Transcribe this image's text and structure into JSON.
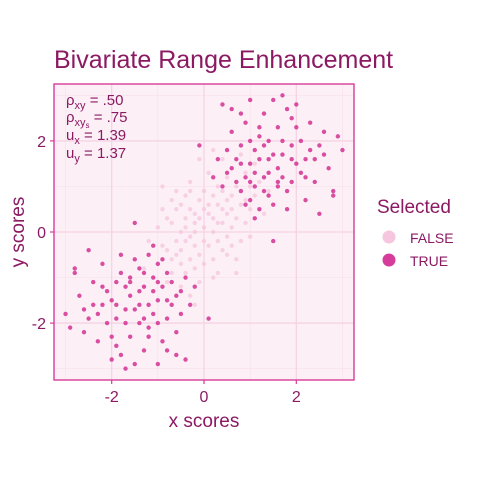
{
  "chart_data": {
    "type": "scatter",
    "title": "Bivariate Range Enhancement",
    "xlabel": "x scores",
    "ylabel": "y scores",
    "xlim": [
      -3.25,
      3.25
    ],
    "ylim": [
      -3.25,
      3.25
    ],
    "x_ticks": [
      -2,
      0,
      2
    ],
    "y_ticks": [
      -2,
      0,
      2
    ],
    "x_tick_labels": [
      "-2",
      "0",
      "2"
    ],
    "y_tick_labels": [
      "-2",
      "0",
      "2"
    ],
    "grid": true,
    "legend": {
      "title": "Selected",
      "position": "right",
      "entries": [
        {
          "label": "FALSE",
          "color": "#f5c6dd"
        },
        {
          "label": "TRUE",
          "color": "#d63c99"
        }
      ]
    },
    "annotations": {
      "rho_xy": {
        "symbol": "ρ",
        "sub": "xy",
        "value": " = .50"
      },
      "rho_xys": {
        "symbol": "ρ",
        "sub": "xy",
        "subsub": "s",
        "value": " = .75"
      },
      "u_x": {
        "symbol": "u",
        "sub": "x",
        "value": " = 1.39"
      },
      "u_y": {
        "symbol": "u",
        "sub": "y",
        "value": " = 1.37"
      }
    },
    "series": [
      {
        "name": "FALSE",
        "color": "#f5c6dd",
        "points": [
          [
            0.0,
            0.1
          ],
          [
            0.2,
            0.3
          ],
          [
            -0.3,
            -0.1
          ],
          [
            0.4,
            0.2
          ],
          [
            -0.5,
            -0.4
          ],
          [
            0.6,
            0.8
          ],
          [
            -0.2,
            0.4
          ],
          [
            0.1,
            -0.3
          ],
          [
            0.3,
            0.6
          ],
          [
            -0.4,
            0.1
          ],
          [
            0.7,
            0.3
          ],
          [
            -0.6,
            -0.2
          ],
          [
            0.5,
            -0.1
          ],
          [
            -0.1,
            0.7
          ],
          [
            0.2,
            -0.6
          ],
          [
            -0.7,
            -0.6
          ],
          [
            0.8,
            0.9
          ],
          [
            -0.3,
            0.5
          ],
          [
            0.4,
            -0.4
          ],
          [
            0.0,
            0.9
          ],
          [
            1.0,
            0.5
          ],
          [
            -0.9,
            -0.3
          ],
          [
            0.3,
            1.0
          ],
          [
            -0.5,
            0.6
          ],
          [
            0.6,
            -0.3
          ],
          [
            -0.2,
            -0.8
          ],
          [
            0.9,
            0.2
          ],
          [
            -0.8,
            0.3
          ],
          [
            0.1,
            0.4
          ],
          [
            -0.1,
            -0.5
          ],
          [
            0.5,
            1.2
          ],
          [
            -0.4,
            -0.9
          ],
          [
            1.1,
            0.8
          ],
          [
            -1.0,
            -0.7
          ],
          [
            0.2,
            0.0
          ],
          [
            -0.3,
            1.1
          ],
          [
            0.7,
            -0.6
          ],
          [
            -0.6,
            0.9
          ],
          [
            0.4,
            0.5
          ],
          [
            -0.2,
            0.0
          ],
          [
            1.2,
            1.1
          ],
          [
            -1.1,
            -1.0
          ],
          [
            0.0,
            -0.2
          ],
          [
            0.8,
            0.6
          ],
          [
            -0.7,
            0.2
          ],
          [
            0.3,
            -0.9
          ],
          [
            -0.4,
            0.8
          ],
          [
            0.6,
            1.4
          ],
          [
            -0.5,
            -1.2
          ],
          [
            1.0,
            -0.1
          ],
          [
            -0.9,
            0.5
          ],
          [
            0.1,
            1.3
          ],
          [
            -0.1,
            -1.1
          ],
          [
            0.9,
            1.3
          ],
          [
            -0.8,
            -1.1
          ],
          [
            0.2,
            0.8
          ],
          [
            -0.2,
            -0.3
          ],
          [
            0.5,
            0.4
          ],
          [
            -0.6,
            -0.5
          ],
          [
            0.4,
            0.9
          ],
          [
            -0.3,
            -0.6
          ],
          [
            0.7,
            1.0
          ],
          [
            -0.4,
            0.3
          ],
          [
            0.0,
            0.5
          ],
          [
            1.3,
            0.4
          ],
          [
            -1.2,
            -0.2
          ],
          [
            0.3,
            -0.2
          ],
          [
            -0.5,
            0.0
          ],
          [
            0.6,
            0.1
          ],
          [
            -0.7,
            -0.9
          ],
          [
            0.8,
            -0.2
          ],
          [
            -0.1,
            1.6
          ],
          [
            0.2,
            -1.0
          ],
          [
            -1.0,
            0.1
          ],
          [
            1.1,
            1.5
          ],
          [
            -0.3,
            -1.4
          ],
          [
            0.5,
            0.7
          ],
          [
            -0.6,
            0.5
          ],
          [
            0.1,
            0.6
          ],
          [
            -0.2,
            0.2
          ],
          [
            0.9,
            0.7
          ],
          [
            -0.8,
            -0.4
          ],
          [
            0.4,
            1.6
          ],
          [
            -0.4,
            -0.2
          ],
          [
            0.7,
            -0.9
          ],
          [
            -0.9,
            1.0
          ],
          [
            0.0,
            -0.7
          ],
          [
            1.4,
            0.9
          ],
          [
            -1.3,
            -0.8
          ],
          [
            0.2,
            1.8
          ],
          [
            -0.5,
            -0.7
          ],
          [
            0.6,
            0.5
          ],
          [
            -0.1,
            0.3
          ],
          [
            0.3,
            0.2
          ],
          [
            -0.7,
            0.7
          ],
          [
            1.0,
            1.0
          ],
          [
            -0.2,
            -1.6
          ],
          [
            0.5,
            -0.5
          ],
          [
            -0.3,
            0.9
          ],
          [
            0.8,
            1.7
          ]
        ]
      },
      {
        "name": "TRUE",
        "color": "#d63c99",
        "points": [
          [
            1.0,
            1.5
          ],
          [
            1.3,
            1.2
          ],
          [
            0.8,
            1.9
          ],
          [
            1.6,
            1.0
          ],
          [
            1.2,
            2.1
          ],
          [
            0.6,
            1.4
          ],
          [
            1.9,
            1.6
          ],
          [
            1.4,
            0.8
          ],
          [
            0.9,
            2.4
          ],
          [
            2.1,
            1.3
          ],
          [
            1.1,
            1.0
          ],
          [
            1.7,
            2.0
          ],
          [
            0.7,
            1.1
          ],
          [
            1.5,
            1.7
          ],
          [
            2.3,
            1.8
          ],
          [
            1.0,
            0.7
          ],
          [
            1.8,
            0.9
          ],
          [
            0.5,
            1.8
          ],
          [
            2.0,
            2.3
          ],
          [
            1.3,
            2.6
          ],
          [
            1.6,
            1.4
          ],
          [
            0.8,
            0.9
          ],
          [
            2.4,
            1.1
          ],
          [
            1.1,
            1.8
          ],
          [
            1.9,
            2.5
          ],
          [
            0.6,
            2.2
          ],
          [
            1.4,
            1.3
          ],
          [
            2.2,
            0.7
          ],
          [
            1.2,
            1.6
          ],
          [
            0.9,
            1.2
          ],
          [
            1.7,
            1.2
          ],
          [
            2.5,
            1.9
          ],
          [
            1.0,
            2.0
          ],
          [
            1.5,
            0.6
          ],
          [
            0.7,
            1.6
          ],
          [
            2.0,
            1.5
          ],
          [
            1.3,
            0.9
          ],
          [
            1.8,
            2.7
          ],
          [
            0.8,
            2.6
          ],
          [
            2.6,
            2.2
          ],
          [
            1.1,
            1.3
          ],
          [
            1.6,
            2.3
          ],
          [
            2.2,
            1.6
          ],
          [
            0.4,
            1.0
          ],
          [
            1.4,
            2.0
          ],
          [
            1.9,
            1.1
          ],
          [
            1.2,
            0.5
          ],
          [
            2.7,
            1.4
          ],
          [
            1.0,
            2.9
          ],
          [
            1.7,
            1.7
          ],
          [
            0.5,
            1.3
          ],
          [
            2.1,
            2.0
          ],
          [
            1.5,
            2.9
          ],
          [
            2.8,
            0.9
          ],
          [
            0.9,
            0.6
          ],
          [
            1.3,
            1.9
          ],
          [
            2.3,
            2.4
          ],
          [
            1.8,
            0.5
          ],
          [
            0.6,
            2.7
          ],
          [
            2.4,
            1.6
          ],
          [
            1.2,
            2.3
          ],
          [
            1.6,
            1.1
          ],
          [
            2.0,
            2.8
          ],
          [
            0.8,
            1.5
          ],
          [
            1.4,
            1.6
          ],
          [
            2.6,
            1.7
          ],
          [
            1.0,
            1.1
          ],
          [
            1.9,
            1.9
          ],
          [
            0.3,
            1.6
          ],
          [
            2.2,
            1.2
          ],
          [
            -1.0,
            -1.5
          ],
          [
            -1.3,
            -1.2
          ],
          [
            -0.8,
            -1.9
          ],
          [
            -1.6,
            -1.0
          ],
          [
            -1.2,
            -2.1
          ],
          [
            -0.6,
            -1.4
          ],
          [
            -1.9,
            -1.6
          ],
          [
            -1.4,
            -0.8
          ],
          [
            -0.9,
            -2.4
          ],
          [
            -2.1,
            -1.3
          ],
          [
            -1.1,
            -1.0
          ],
          [
            -1.7,
            -2.0
          ],
          [
            -0.7,
            -1.1
          ],
          [
            -1.5,
            -1.7
          ],
          [
            -2.3,
            -1.8
          ],
          [
            -1.0,
            -0.7
          ],
          [
            -1.8,
            -0.9
          ],
          [
            -0.5,
            -1.8
          ],
          [
            -2.0,
            -2.3
          ],
          [
            -1.3,
            -2.6
          ],
          [
            -1.6,
            -1.4
          ],
          [
            -0.8,
            -0.9
          ],
          [
            -2.4,
            -1.1
          ],
          [
            -1.1,
            -1.8
          ],
          [
            -1.9,
            -2.5
          ],
          [
            -0.6,
            -2.2
          ],
          [
            -1.4,
            -1.3
          ],
          [
            -2.2,
            -0.7
          ],
          [
            -1.2,
            -1.6
          ],
          [
            -0.9,
            -1.2
          ],
          [
            -1.7,
            -1.2
          ],
          [
            -2.5,
            -1.9
          ],
          [
            -1.0,
            -2.0
          ],
          [
            -1.5,
            -0.6
          ],
          [
            -0.7,
            -1.6
          ],
          [
            -2.0,
            -1.5
          ],
          [
            -1.3,
            -0.9
          ],
          [
            -1.8,
            -2.7
          ],
          [
            -0.8,
            -2.6
          ],
          [
            -2.6,
            -2.2
          ],
          [
            -1.1,
            -1.3
          ],
          [
            -1.6,
            -2.3
          ],
          [
            -2.2,
            -1.6
          ],
          [
            -0.4,
            -1.0
          ],
          [
            -1.4,
            -2.0
          ],
          [
            -1.9,
            -1.1
          ],
          [
            -1.2,
            -0.5
          ],
          [
            -2.7,
            -1.4
          ],
          [
            -1.0,
            -2.9
          ],
          [
            -1.7,
            -1.7
          ],
          [
            -0.5,
            -1.3
          ],
          [
            -2.1,
            -2.0
          ],
          [
            -1.5,
            -2.9
          ],
          [
            -2.8,
            -0.9
          ],
          [
            -0.9,
            -0.6
          ],
          [
            -1.3,
            -1.9
          ],
          [
            -2.3,
            -2.4
          ],
          [
            -1.8,
            -0.5
          ],
          [
            -0.6,
            -2.7
          ],
          [
            -2.4,
            -1.6
          ],
          [
            -1.2,
            -2.3
          ],
          [
            -1.6,
            -1.1
          ],
          [
            -2.0,
            -2.8
          ],
          [
            -0.8,
            -1.5
          ],
          [
            -1.4,
            -1.6
          ],
          [
            -2.6,
            -1.7
          ],
          [
            -1.0,
            -1.1
          ],
          [
            -1.9,
            -1.9
          ],
          [
            -0.3,
            -1.6
          ],
          [
            -2.2,
            -1.2
          ],
          [
            -2.9,
            -2.1
          ],
          [
            -1.1,
            -0.3
          ],
          [
            -0.2,
            -1.2
          ],
          [
            -3.0,
            -1.8
          ],
          [
            -1.5,
            0.2
          ],
          [
            -2.5,
            -0.4
          ],
          [
            -0.4,
            -2.8
          ],
          [
            0.1,
            -1.9
          ],
          [
            -1.7,
            -3.0
          ],
          [
            -2.8,
            -0.8
          ],
          [
            2.9,
            2.1
          ],
          [
            1.1,
            0.3
          ],
          [
            0.2,
            1.2
          ],
          [
            3.0,
            1.8
          ],
          [
            1.5,
            -0.2
          ],
          [
            2.5,
            0.4
          ],
          [
            0.4,
            2.8
          ],
          [
            -0.1,
            1.9
          ],
          [
            1.7,
            3.0
          ],
          [
            2.8,
            0.8
          ]
        ]
      }
    ]
  }
}
